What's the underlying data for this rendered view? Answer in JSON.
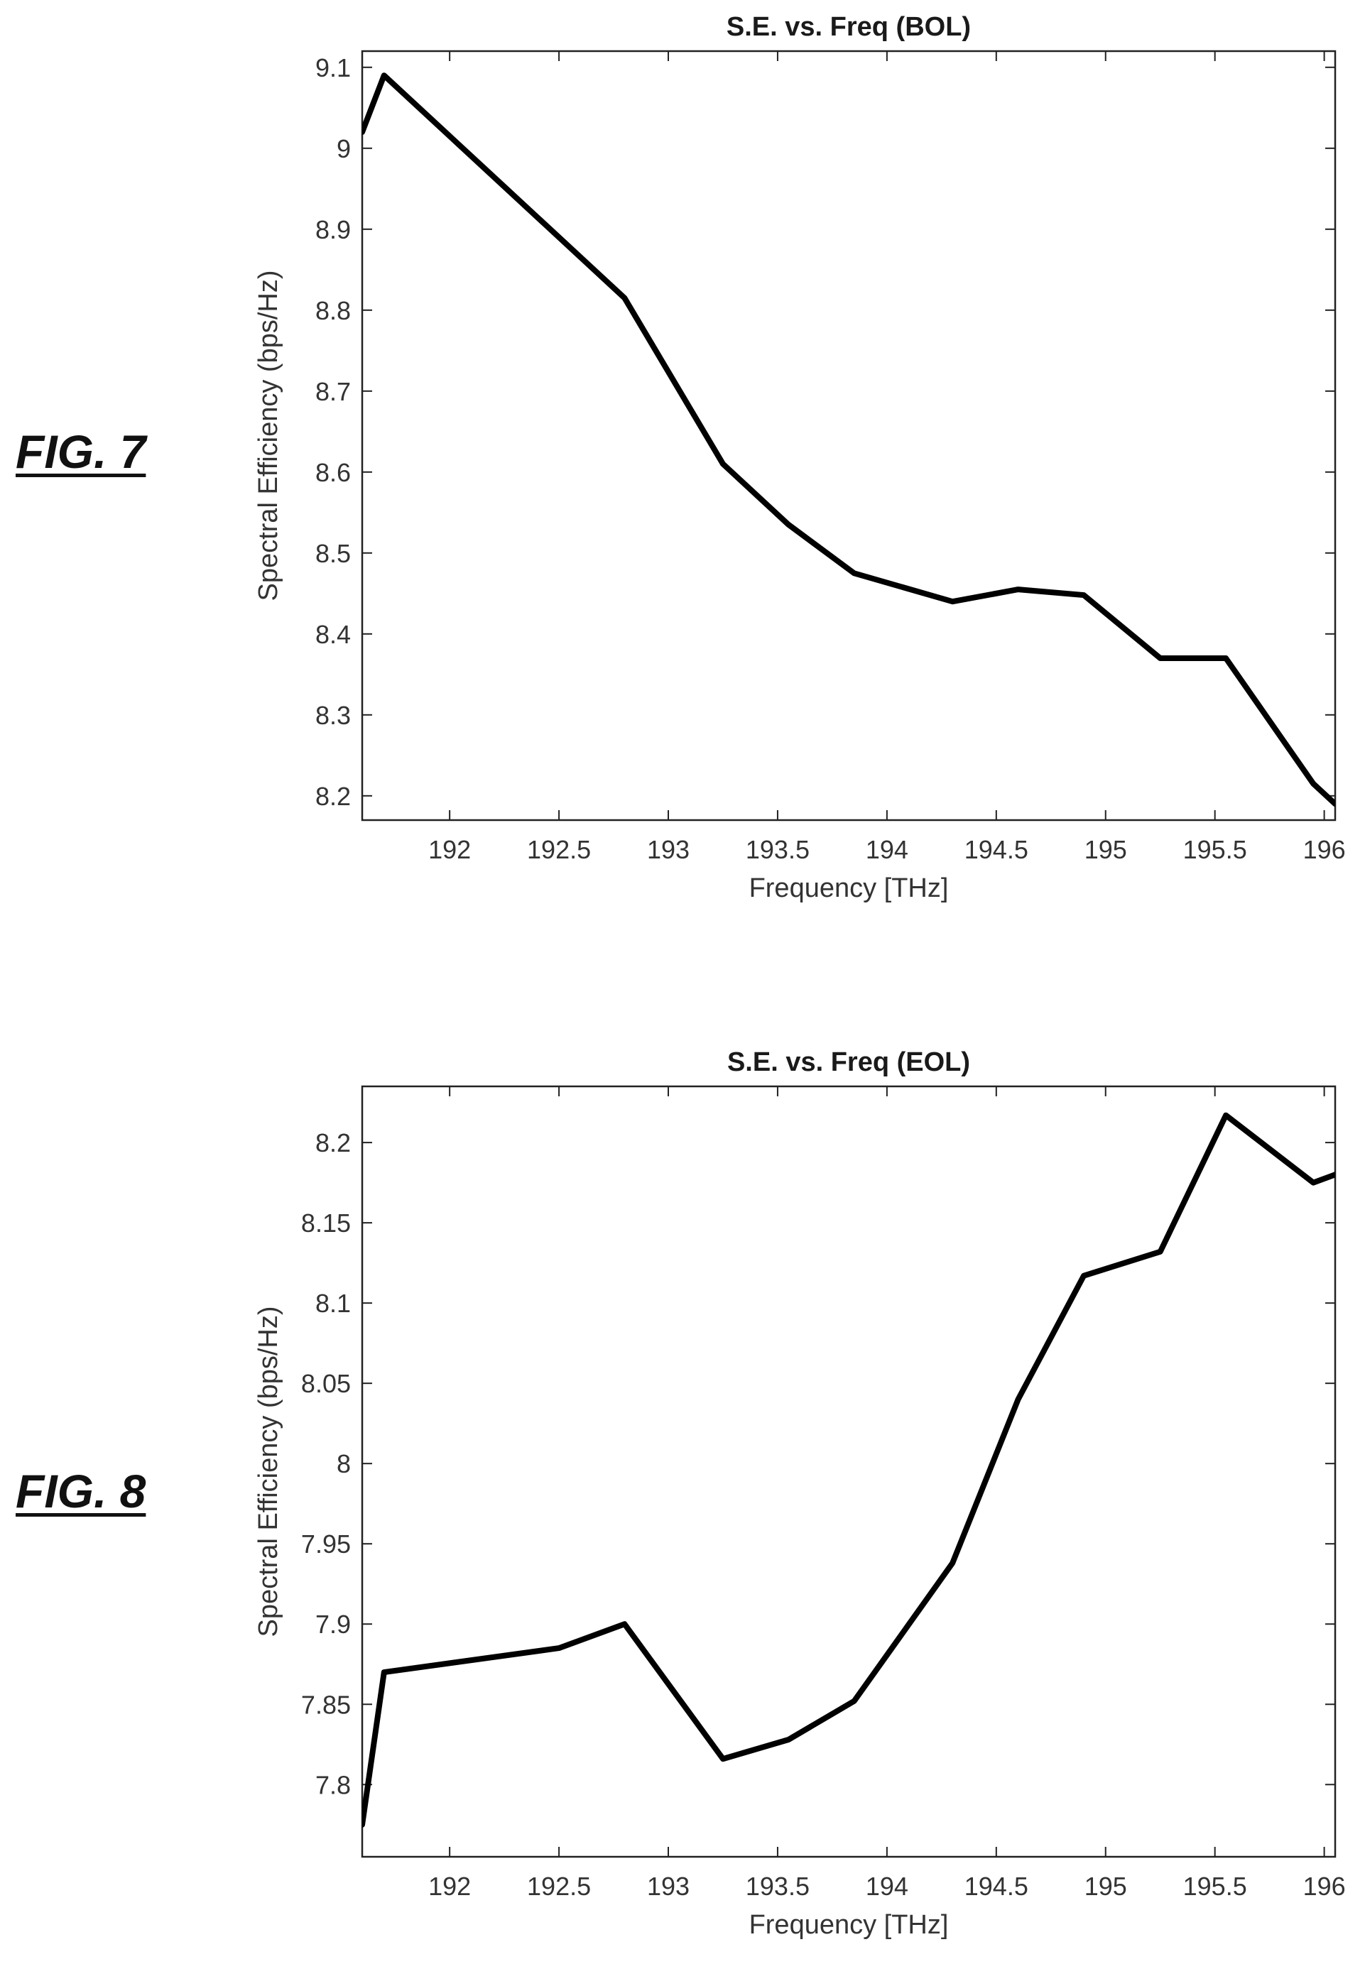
{
  "figures": [
    {
      "label": "FIG. 7"
    },
    {
      "label": "FIG. 8"
    }
  ],
  "chart_data": [
    {
      "type": "line",
      "title": "S.E. vs. Freq (BOL)",
      "xlabel": "Frequency [THz]",
      "ylabel": "Spectral Efficiency (bps/Hz)",
      "xlim": [
        191.6,
        196.05
      ],
      "ylim": [
        8.17,
        9.12
      ],
      "xticks": [
        192,
        192.5,
        193,
        193.5,
        194,
        194.5,
        195,
        195.5,
        196
      ],
      "xtick_labels": [
        "192",
        "192.5",
        "193",
        "193.5",
        "194",
        "194.5",
        "195",
        "195.5",
        "196"
      ],
      "yticks": [
        8.2,
        8.3,
        8.4,
        8.5,
        8.6,
        8.7,
        8.8,
        8.9,
        9,
        9.1
      ],
      "ytick_labels": [
        "8.2",
        "8.3",
        "8.4",
        "8.5",
        "8.6",
        "8.7",
        "8.8",
        "8.9",
        "9",
        "9.1"
      ],
      "grid": false,
      "series": [
        {
          "x": [
            191.6,
            191.7,
            192.5,
            192.8,
            193.25,
            193.55,
            193.85,
            194.3,
            194.6,
            194.9,
            195.25,
            195.55,
            195.95,
            196.05
          ],
          "y": [
            9.02,
            9.09,
            8.89,
            8.815,
            8.61,
            8.535,
            8.475,
            8.44,
            8.455,
            8.448,
            8.37,
            8.37,
            8.215,
            8.19
          ]
        }
      ]
    },
    {
      "type": "line",
      "title": "S.E. vs. Freq (EOL)",
      "xlabel": "Frequency [THz]",
      "ylabel": "Spectral Efficiency (bps/Hz)",
      "xlim": [
        191.6,
        196.05
      ],
      "ylim": [
        7.755,
        8.235
      ],
      "xticks": [
        192,
        192.5,
        193,
        193.5,
        194,
        194.5,
        195,
        195.5,
        196
      ],
      "xtick_labels": [
        "192",
        "192.5",
        "193",
        "193.5",
        "194",
        "194.5",
        "195",
        "195.5",
        "196"
      ],
      "yticks": [
        7.8,
        7.85,
        7.9,
        7.95,
        8,
        8.05,
        8.1,
        8.15,
        8.2
      ],
      "ytick_labels": [
        "7.8",
        "7.85",
        "7.9",
        "7.95",
        "8",
        "8.05",
        "8.1",
        "8.15",
        "8.2"
      ],
      "grid": false,
      "series": [
        {
          "x": [
            191.6,
            191.7,
            192.5,
            192.8,
            193.25,
            193.55,
            193.85,
            194.3,
            194.6,
            194.9,
            195.25,
            195.55,
            195.95,
            196.05
          ],
          "y": [
            7.775,
            7.87,
            7.885,
            7.9,
            7.816,
            7.828,
            7.852,
            7.938,
            8.04,
            8.117,
            8.132,
            8.217,
            8.175,
            8.18
          ]
        }
      ]
    }
  ]
}
